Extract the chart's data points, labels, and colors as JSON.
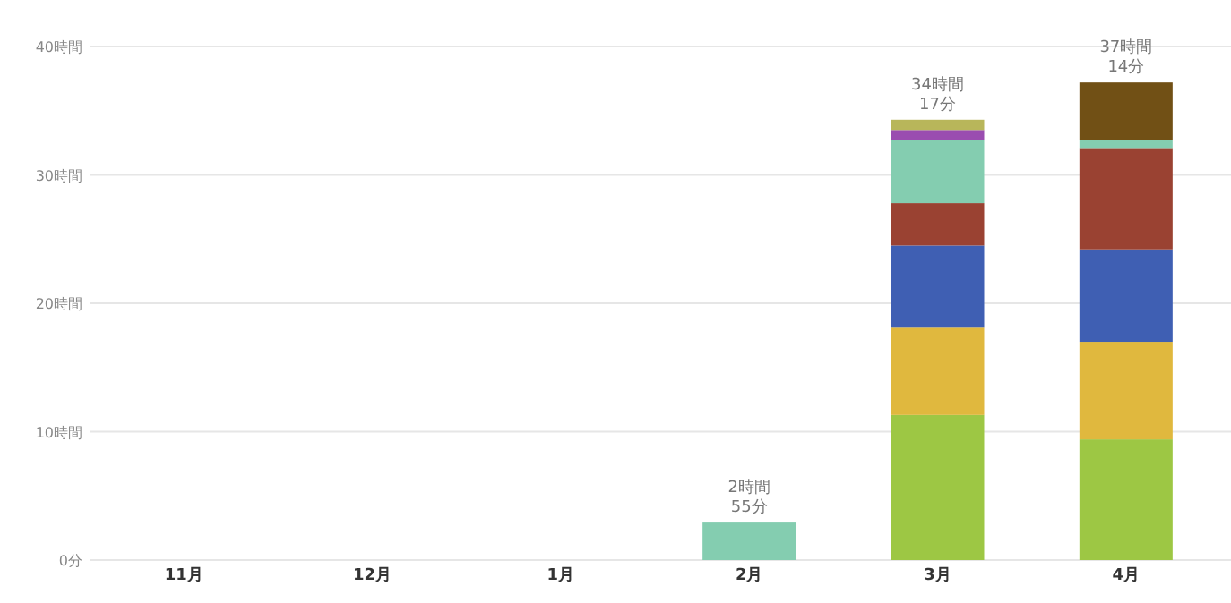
{
  "chart_data": {
    "type": "bar",
    "stacked": true,
    "categories": [
      "11月",
      "12月",
      "1月",
      "2月",
      "3月",
      "4月"
    ],
    "series": [
      {
        "color": "#9dc744",
        "values": [
          null,
          null,
          null,
          null,
          11.3,
          9.4
        ]
      },
      {
        "color": "#e0b83e",
        "values": [
          null,
          null,
          null,
          null,
          6.8,
          7.6
        ]
      },
      {
        "color": "#3f5fb3",
        "values": [
          null,
          null,
          null,
          null,
          6.4,
          7.2
        ]
      },
      {
        "color": "#9a4232",
        "values": [
          null,
          null,
          null,
          null,
          3.3,
          7.9
        ]
      },
      {
        "color": "#84cdb0",
        "values": [
          null,
          null,
          null,
          2.92,
          4.9,
          0.6
        ]
      },
      {
        "color": "#9a4db0",
        "values": [
          null,
          null,
          null,
          null,
          0.8,
          null
        ]
      },
      {
        "color": "#b8b65a",
        "values": [
          null,
          null,
          null,
          null,
          0.8,
          null
        ]
      },
      {
        "color": "#715015",
        "values": [
          null,
          null,
          null,
          null,
          null,
          4.5
        ]
      }
    ],
    "ylim": [
      0,
      40
    ],
    "yticks": [
      {
        "value": 0,
        "label": "0分"
      },
      {
        "value": 10,
        "label": "10時間"
      },
      {
        "value": 20,
        "label": "20時間"
      },
      {
        "value": 30,
        "label": "30時間"
      },
      {
        "value": 40,
        "label": "40時間"
      }
    ],
    "grid": "y",
    "totals": [
      null,
      null,
      null,
      "2時間 55分",
      "34時間 17分",
      "37時間 14分"
    ]
  }
}
